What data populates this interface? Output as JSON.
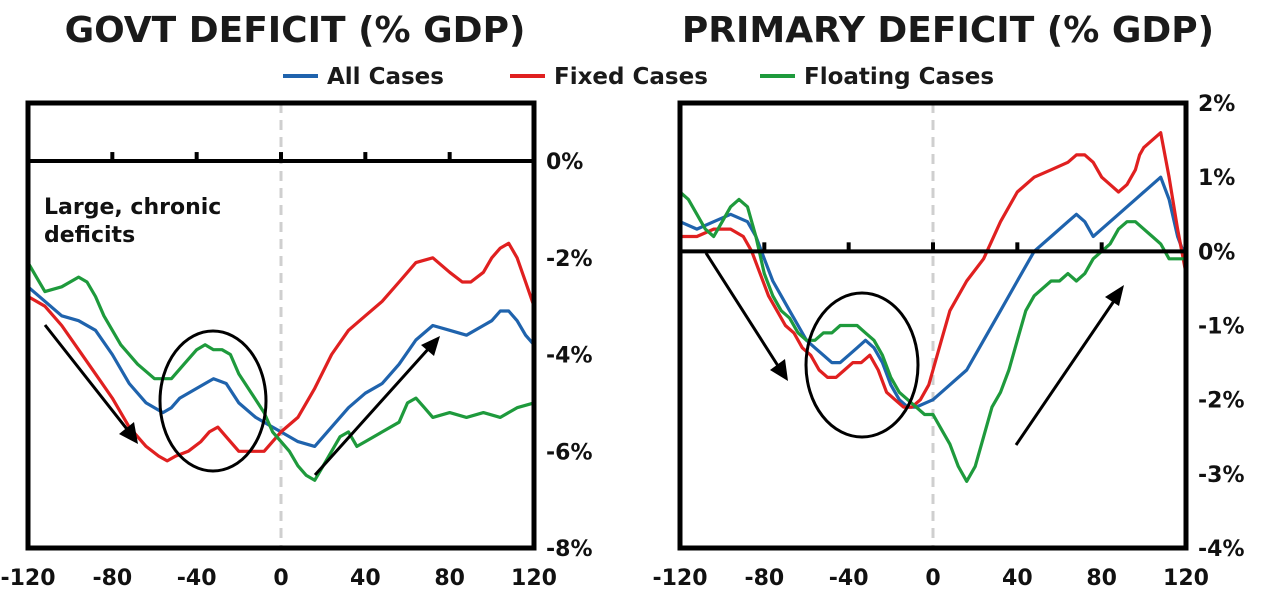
{
  "legend": [
    {
      "label": "All Cases",
      "color": "#1f63ad"
    },
    {
      "label": "Fixed Cases",
      "color": "#e02020"
    },
    {
      "label": "Floating Cases",
      "color": "#1e9a3c"
    }
  ],
  "chart_data": [
    {
      "type": "line",
      "title": "GOVT DEFICIT (% GDP)",
      "xlim": [
        -120,
        120
      ],
      "ylim": [
        -8,
        1.2
      ],
      "x_ticks": [
        "-120",
        "-80",
        "-40",
        "0",
        "40",
        "80",
        "120"
      ],
      "x_tick_values": [
        -120,
        -80,
        -40,
        0,
        40,
        80,
        120
      ],
      "y_ticks": [
        "0%",
        "-2%",
        "-4%",
        "-6%",
        "-8%"
      ],
      "y_tick_values": [
        0,
        -2,
        -4,
        -6,
        -8
      ],
      "y_axis_side": "right",
      "annotation": "Large, chronic deficits",
      "annotation_lines": [
        "Large, chronic",
        "deficits"
      ],
      "grid": false,
      "legend_position": "top",
      "series": [
        {
          "name": "All Cases",
          "color": "#1f63ad",
          "x": [
            -120,
            -112,
            -104,
            -96,
            -88,
            -80,
            -72,
            -64,
            -56,
            -52,
            -48,
            -40,
            -32,
            -26,
            -20,
            -12,
            -4,
            0,
            8,
            16,
            24,
            32,
            40,
            48,
            56,
            64,
            72,
            80,
            88,
            96,
            100,
            104,
            108,
            112,
            116,
            120
          ],
          "y": [
            -2.6,
            -2.9,
            -3.2,
            -3.3,
            -3.5,
            -4.0,
            -4.6,
            -5.0,
            -5.2,
            -5.1,
            -4.9,
            -4.7,
            -4.5,
            -4.6,
            -5.0,
            -5.3,
            -5.5,
            -5.6,
            -5.8,
            -5.9,
            -5.5,
            -5.1,
            -4.8,
            -4.6,
            -4.2,
            -3.7,
            -3.4,
            -3.5,
            -3.6,
            -3.4,
            -3.3,
            -3.1,
            -3.1,
            -3.3,
            -3.6,
            -3.8
          ]
        },
        {
          "name": "Fixed Cases",
          "color": "#e02020",
          "x": [
            -120,
            -112,
            -104,
            -96,
            -88,
            -80,
            -72,
            -64,
            -58,
            -54,
            -50,
            -44,
            -38,
            -34,
            -30,
            -26,
            -20,
            -14,
            -8,
            -4,
            0,
            8,
            16,
            24,
            32,
            40,
            48,
            56,
            64,
            72,
            80,
            86,
            90,
            96,
            100,
            104,
            108,
            112,
            116,
            120
          ],
          "y": [
            -2.8,
            -3.0,
            -3.4,
            -3.9,
            -4.4,
            -4.9,
            -5.5,
            -5.9,
            -6.1,
            -6.2,
            -6.1,
            -6.0,
            -5.8,
            -5.6,
            -5.5,
            -5.7,
            -6.0,
            -6.0,
            -6.0,
            -5.8,
            -5.6,
            -5.3,
            -4.7,
            -4.0,
            -3.5,
            -3.2,
            -2.9,
            -2.5,
            -2.1,
            -2.0,
            -2.3,
            -2.5,
            -2.5,
            -2.3,
            -2.0,
            -1.8,
            -1.7,
            -2.0,
            -2.5,
            -3.0
          ]
        },
        {
          "name": "Floating Cases",
          "color": "#1e9a3c",
          "x": [
            -120,
            -116,
            -112,
            -104,
            -96,
            -92,
            -88,
            -84,
            -76,
            -68,
            -60,
            -52,
            -46,
            -40,
            -36,
            -32,
            -28,
            -24,
            -20,
            -14,
            -8,
            -4,
            0,
            4,
            8,
            12,
            16,
            20,
            24,
            28,
            32,
            36,
            40,
            48,
            56,
            60,
            64,
            68,
            72,
            80,
            88,
            96,
            104,
            112,
            120
          ],
          "y": [
            -2.1,
            -2.4,
            -2.7,
            -2.6,
            -2.4,
            -2.5,
            -2.8,
            -3.2,
            -3.8,
            -4.2,
            -4.5,
            -4.5,
            -4.2,
            -3.9,
            -3.8,
            -3.9,
            -3.9,
            -4.0,
            -4.4,
            -4.8,
            -5.2,
            -5.6,
            -5.8,
            -6.0,
            -6.3,
            -6.5,
            -6.6,
            -6.3,
            -6.0,
            -5.7,
            -5.6,
            -5.9,
            -5.8,
            -5.6,
            -5.4,
            -5.0,
            -4.9,
            -5.1,
            -5.3,
            -5.2,
            -5.3,
            -5.2,
            -5.3,
            -5.1,
            -5.0
          ]
        }
      ]
    },
    {
      "type": "line",
      "title": "PRIMARY DEFICIT (% GDP)",
      "xlim": [
        -120,
        120
      ],
      "ylim": [
        -4,
        2
      ],
      "x_ticks": [
        "-120",
        "-80",
        "-40",
        "0",
        "40",
        "80",
        "120"
      ],
      "x_tick_values": [
        -120,
        -80,
        -40,
        0,
        40,
        80,
        120
      ],
      "y_ticks": [
        "2%",
        "1%",
        "0%",
        "-1%",
        "-2%",
        "-3%",
        "-4%"
      ],
      "y_tick_values": [
        2,
        1,
        0,
        -1,
        -2,
        -3,
        -4
      ],
      "y_axis_side": "right",
      "grid": false,
      "legend_position": "top",
      "series": [
        {
          "name": "All Cases",
          "color": "#1f63ad",
          "x": [
            -120,
            -112,
            -104,
            -96,
            -88,
            -84,
            -80,
            -76,
            -72,
            -68,
            -64,
            -60,
            -56,
            -52,
            -48,
            -44,
            -40,
            -36,
            -32,
            -28,
            -24,
            -20,
            -16,
            -12,
            -8,
            0,
            8,
            16,
            24,
            32,
            40,
            48,
            56,
            64,
            68,
            72,
            76,
            80,
            88,
            92,
            96,
            100,
            104,
            108,
            112,
            116,
            120
          ],
          "y": [
            0.4,
            0.3,
            0.4,
            0.5,
            0.4,
            0.2,
            -0.1,
            -0.4,
            -0.6,
            -0.8,
            -1.0,
            -1.2,
            -1.3,
            -1.4,
            -1.5,
            -1.5,
            -1.4,
            -1.3,
            -1.2,
            -1.3,
            -1.5,
            -1.8,
            -2.0,
            -2.1,
            -2.1,
            -2.0,
            -1.8,
            -1.6,
            -1.2,
            -0.8,
            -0.4,
            0.0,
            0.2,
            0.4,
            0.5,
            0.4,
            0.2,
            0.3,
            0.5,
            0.6,
            0.7,
            0.8,
            0.9,
            1.0,
            0.7,
            0.2,
            -0.1
          ]
        },
        {
          "name": "Fixed Cases",
          "color": "#e02020",
          "x": [
            -120,
            -112,
            -104,
            -96,
            -90,
            -86,
            -82,
            -78,
            -74,
            -70,
            -66,
            -62,
            -58,
            -54,
            -50,
            -46,
            -42,
            -38,
            -34,
            -30,
            -26,
            -22,
            -18,
            -14,
            -10,
            -6,
            -2,
            0,
            4,
            8,
            16,
            24,
            32,
            40,
            48,
            56,
            64,
            68,
            72,
            76,
            80,
            84,
            88,
            92,
            96,
            98,
            100,
            104,
            108,
            112,
            116,
            120
          ],
          "y": [
            0.2,
            0.2,
            0.3,
            0.3,
            0.2,
            0.0,
            -0.3,
            -0.6,
            -0.8,
            -1.0,
            -1.1,
            -1.3,
            -1.4,
            -1.6,
            -1.7,
            -1.7,
            -1.6,
            -1.5,
            -1.5,
            -1.4,
            -1.6,
            -1.9,
            -2.0,
            -2.1,
            -2.1,
            -2.0,
            -1.8,
            -1.6,
            -1.2,
            -0.8,
            -0.4,
            -0.1,
            0.4,
            0.8,
            1.0,
            1.1,
            1.2,
            1.3,
            1.3,
            1.2,
            1.0,
            0.9,
            0.8,
            0.9,
            1.1,
            1.3,
            1.4,
            1.5,
            1.6,
            1.0,
            0.3,
            -0.3
          ]
        },
        {
          "name": "Floating Cases",
          "color": "#1e9a3c",
          "x": [
            -120,
            -116,
            -112,
            -108,
            -104,
            -100,
            -96,
            -92,
            -88,
            -84,
            -80,
            -76,
            -72,
            -68,
            -64,
            -60,
            -56,
            -52,
            -48,
            -44,
            -40,
            -36,
            -32,
            -28,
            -24,
            -20,
            -16,
            -12,
            -8,
            -4,
            0,
            4,
            8,
            12,
            16,
            20,
            24,
            28,
            32,
            36,
            40,
            44,
            48,
            52,
            56,
            60,
            64,
            68,
            72,
            76,
            80,
            84,
            88,
            92,
            96,
            100,
            104,
            108,
            112,
            116,
            120
          ],
          "y": [
            0.8,
            0.7,
            0.5,
            0.3,
            0.2,
            0.4,
            0.6,
            0.7,
            0.6,
            0.2,
            -0.3,
            -0.6,
            -0.8,
            -0.9,
            -1.1,
            -1.2,
            -1.2,
            -1.1,
            -1.1,
            -1.0,
            -1.0,
            -1.0,
            -1.1,
            -1.2,
            -1.4,
            -1.7,
            -1.9,
            -2.0,
            -2.1,
            -2.2,
            -2.2,
            -2.4,
            -2.6,
            -2.9,
            -3.1,
            -2.9,
            -2.5,
            -2.1,
            -1.9,
            -1.6,
            -1.2,
            -0.8,
            -0.6,
            -0.5,
            -0.4,
            -0.4,
            -0.3,
            -0.4,
            -0.3,
            -0.1,
            0.0,
            0.1,
            0.3,
            0.4,
            0.4,
            0.3,
            0.2,
            0.1,
            -0.1,
            -0.1,
            -0.1
          ]
        }
      ]
    }
  ]
}
